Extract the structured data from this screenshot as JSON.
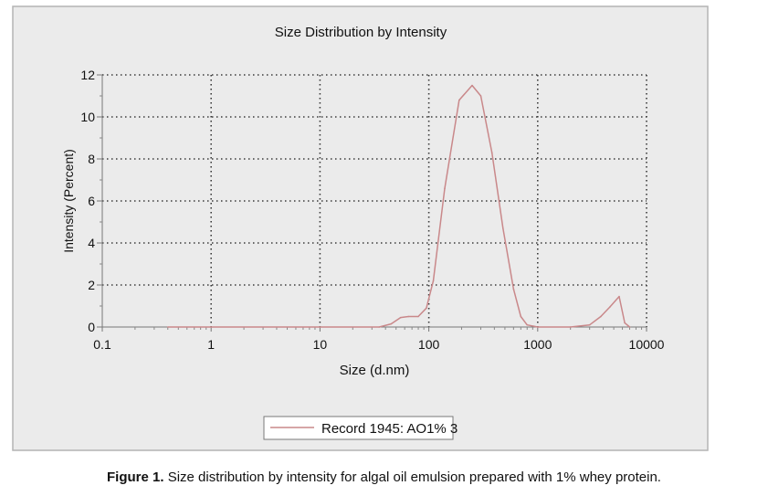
{
  "chart_data": {
    "type": "line",
    "title": "Size Distribution by Intensity",
    "xlabel": "Size (d.nm)",
    "ylabel": "Intensity (Percent)",
    "x_scale": "log",
    "xlim": [
      0.1,
      10000
    ],
    "ylim": [
      0,
      12
    ],
    "x_ticks": [
      0.1,
      1,
      10,
      100,
      1000,
      10000
    ],
    "x_tick_labels": [
      "0.1",
      "1",
      "10",
      "100",
      "1000",
      "10000"
    ],
    "y_ticks": [
      0,
      2,
      4,
      6,
      8,
      10,
      12
    ],
    "y_tick_labels": [
      "0",
      "2",
      "4",
      "6",
      "8",
      "10",
      "12"
    ],
    "grid": true,
    "legend": "bottom-center",
    "series": [
      {
        "name": "Record 1945: AO1% 3",
        "color": "#c9888a",
        "x": [
          0.4,
          1,
          10,
          35,
          45,
          55,
          65,
          80,
          95,
          110,
          140,
          190,
          250,
          300,
          380,
          480,
          600,
          700,
          800,
          1000,
          2000,
          3000,
          3800,
          4600,
          5600,
          6300,
          7000
        ],
        "y": [
          0,
          0,
          0,
          0,
          0.15,
          0.45,
          0.5,
          0.5,
          0.9,
          2.2,
          6.6,
          10.8,
          11.5,
          11.0,
          8.3,
          4.7,
          1.8,
          0.5,
          0.1,
          0,
          0,
          0.1,
          0.5,
          0.95,
          1.45,
          0.2,
          0
        ]
      }
    ]
  },
  "caption": {
    "label": "Figure 1.",
    "text": " Size distribution by intensity for algal oil emulsion prepared with 1% whey protein."
  }
}
